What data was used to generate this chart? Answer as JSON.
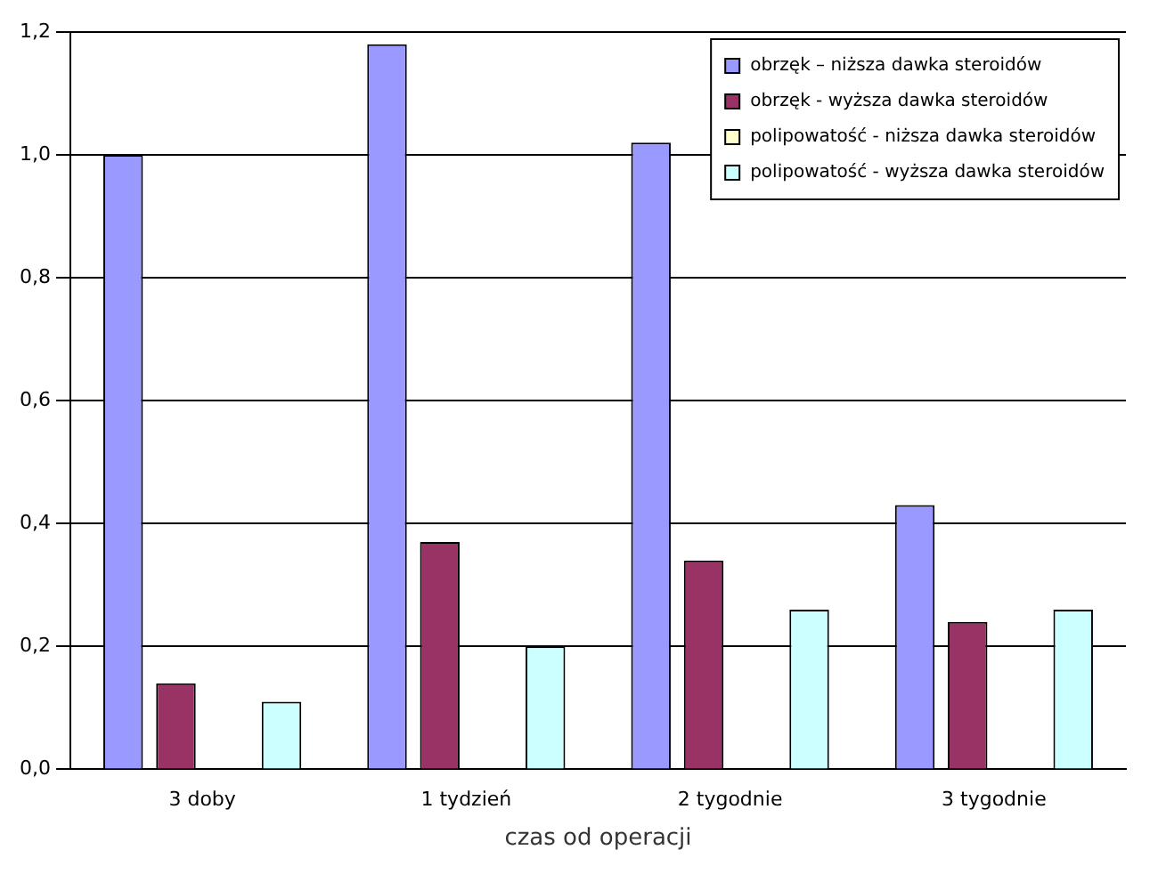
{
  "chart_data": {
    "type": "bar",
    "xlabel": "czas od operacji",
    "categories": [
      "3 doby",
      "1 tydzień",
      "2 tygodnie",
      "3 tygodnie"
    ],
    "series": [
      {
        "name": "obrzęk – niższa dawka steroidów",
        "color": "#9999ff",
        "values": [
          1.0,
          1.18,
          1.02,
          0.43
        ]
      },
      {
        "name": "obrzęk - wyższa dawka steroidów",
        "color": "#993366",
        "values": [
          0.14,
          0.37,
          0.34,
          0.24
        ]
      },
      {
        "name": "polipowatość - niższa dawka steroidów",
        "color": "#ffffcc",
        "values": [
          0,
          0,
          0,
          0
        ]
      },
      {
        "name": "polipowatość - wyższa dawka steroidów",
        "color": "#ccffff",
        "values": [
          0.11,
          0.2,
          0.26,
          0.26
        ]
      }
    ],
    "ylim": [
      0,
      1.2
    ],
    "yticks": [
      {
        "value": 0,
        "label": "0,0"
      },
      {
        "value": 0.2,
        "label": "0,2"
      },
      {
        "value": 0.4,
        "label": "0,4"
      },
      {
        "value": 0.6,
        "label": "0,6"
      },
      {
        "value": 0.8,
        "label": "0,8"
      },
      {
        "value": 1.0,
        "label": "1,0"
      },
      {
        "value": 1.2,
        "label": "1,2"
      }
    ],
    "grid": "y",
    "legend": "top right"
  }
}
